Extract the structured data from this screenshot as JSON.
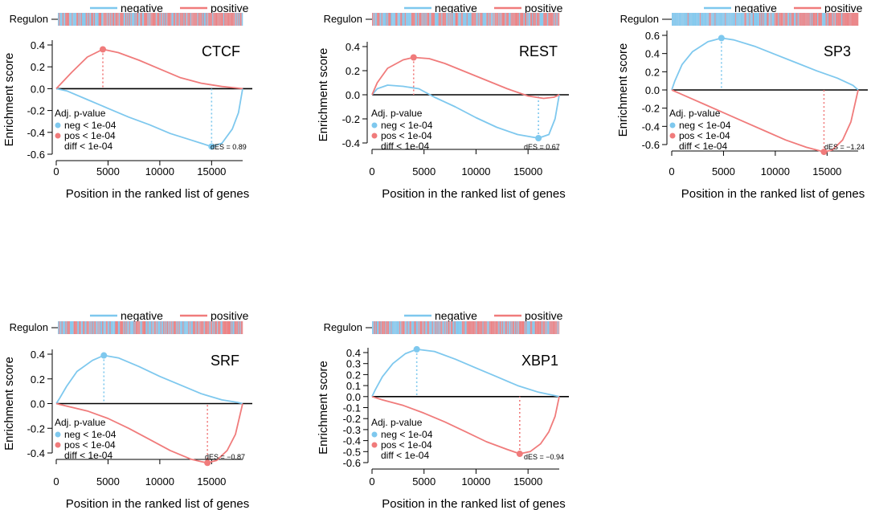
{
  "legend": {
    "negative": "negative",
    "positive": "positive"
  },
  "labels": {
    "regulon": "Regulon",
    "ylabel": "Enrichment score",
    "xlabel": "Position in the ranked list of genes",
    "pvalue_title": "Adj. p-value"
  },
  "colors": {
    "negative": "#7EC8EE",
    "positive": "#F07B7B",
    "axis": "#000000"
  },
  "chart_data": [
    {
      "type": "line",
      "title": "CTCF",
      "xlim": [
        0,
        18000
      ],
      "ylim": [
        -0.6,
        0.4
      ],
      "xticks": [
        0,
        5000,
        10000,
        15000
      ],
      "xtick_labels": [
        "0",
        "5000",
        "10000",
        "15000"
      ],
      "yticks": [
        -0.6,
        -0.4,
        -0.2,
        0.0,
        0.2,
        0.4
      ],
      "ytick_labels": [
        "-0.6",
        "-0.4",
        "-0.2",
        "0.0",
        "0.2",
        "0.4"
      ],
      "regulon_mix": 0.6,
      "pvalues": {
        "neg": "neg < 1e-04",
        "pos": "pos < 1e-04",
        "diff": "diff < 1e-04"
      },
      "des_label": "dES = 0.89",
      "series": [
        {
          "name": "negative",
          "peak_x": 15000,
          "peak_y": -0.53,
          "x": [
            0,
            1000,
            3000,
            5000,
            7000,
            9000,
            11000,
            13000,
            14000,
            15000,
            16000,
            17000,
            17600,
            18000
          ],
          "y": [
            0,
            -0.02,
            -0.1,
            -0.18,
            -0.26,
            -0.33,
            -0.41,
            -0.47,
            -0.5,
            -0.53,
            -0.5,
            -0.37,
            -0.22,
            0
          ]
        },
        {
          "name": "positive",
          "peak_x": 4500,
          "peak_y": 0.36,
          "x": [
            0,
            500,
            1500,
            3000,
            4500,
            6000,
            8000,
            10000,
            12000,
            14000,
            16000,
            17000,
            18000
          ],
          "y": [
            0,
            0.05,
            0.15,
            0.29,
            0.36,
            0.33,
            0.26,
            0.18,
            0.1,
            0.05,
            0.02,
            0.01,
            0
          ]
        }
      ]
    },
    {
      "type": "line",
      "title": "REST",
      "xlim": [
        0,
        18000
      ],
      "ylim": [
        -0.4,
        0.4
      ],
      "xticks": [
        0,
        5000,
        10000,
        15000
      ],
      "xtick_labels": [
        "0",
        "5000",
        "10000",
        "15000"
      ],
      "yticks": [
        -0.4,
        -0.2,
        0.0,
        0.2,
        0.4
      ],
      "ytick_labels": [
        "-0.4",
        "-0.2",
        "0.0",
        "0.2",
        "0.4"
      ],
      "regulon_mix": 0.6,
      "pvalues": {
        "neg": "neg < 1e-04",
        "pos": "pos < 1e-04",
        "diff": "diff < 1e-04"
      },
      "des_label": "dES = 0.67",
      "series": [
        {
          "name": "negative",
          "peak_x": 16000,
          "peak_y": -0.36,
          "x": [
            0,
            500,
            1500,
            3000,
            4500,
            6000,
            8000,
            10000,
            12000,
            14000,
            16000,
            17000,
            17600,
            18000
          ],
          "y": [
            0,
            0.05,
            0.08,
            0.07,
            0.05,
            -0.02,
            -0.1,
            -0.19,
            -0.27,
            -0.33,
            -0.36,
            -0.33,
            -0.2,
            0
          ]
        },
        {
          "name": "positive",
          "peak_x": 4000,
          "peak_y": 0.31,
          "x": [
            0,
            500,
            1500,
            3000,
            4000,
            5500,
            7000,
            9000,
            11000,
            13000,
            15000,
            16500,
            17500,
            18000
          ],
          "y": [
            0,
            0.1,
            0.22,
            0.29,
            0.31,
            0.3,
            0.26,
            0.19,
            0.12,
            0.05,
            -0.01,
            -0.03,
            -0.02,
            0
          ]
        }
      ]
    },
    {
      "type": "line",
      "title": "SP3",
      "xlim": [
        0,
        18000
      ],
      "ylim": [
        -0.6,
        0.6
      ],
      "xticks": [
        0,
        5000,
        10000,
        15000
      ],
      "xtick_labels": [
        "0",
        "5000",
        "10000",
        "15000"
      ],
      "yticks": [
        -0.6,
        -0.4,
        -0.2,
        0.0,
        0.2,
        0.4,
        0.6
      ],
      "ytick_labels": [
        "-0.6",
        "-0.4",
        "-0.2",
        "0.0",
        "0.2",
        "0.4",
        "0.6"
      ],
      "regulon_mix": 0.1,
      "pvalues": {
        "neg": "neg < 1e-04",
        "pos": "pos < 1e-04",
        "diff": "diff < 1e-04"
      },
      "des_label": "dES = −1.24",
      "series": [
        {
          "name": "negative",
          "peak_x": 4800,
          "peak_y": 0.57,
          "x": [
            0,
            300,
            1000,
            2000,
            3500,
            4800,
            6000,
            8000,
            10000,
            12000,
            14000,
            16000,
            17500,
            18000
          ],
          "y": [
            0,
            0.1,
            0.28,
            0.42,
            0.53,
            0.57,
            0.55,
            0.48,
            0.39,
            0.3,
            0.21,
            0.13,
            0.05,
            0
          ]
        },
        {
          "name": "positive",
          "peak_x": 14700,
          "peak_y": -0.68,
          "x": [
            0,
            1000,
            3000,
            5000,
            7000,
            9000,
            11000,
            13000,
            14000,
            14700,
            15500,
            16500,
            17300,
            18000
          ],
          "y": [
            0,
            -0.05,
            -0.15,
            -0.25,
            -0.35,
            -0.45,
            -0.55,
            -0.63,
            -0.66,
            -0.68,
            -0.66,
            -0.55,
            -0.35,
            0
          ]
        }
      ]
    },
    {
      "type": "line",
      "title": "SRF",
      "xlim": [
        0,
        18000
      ],
      "ylim": [
        -0.4,
        0.4
      ],
      "xticks": [
        0,
        5000,
        10000,
        15000
      ],
      "xtick_labels": [
        "0",
        "5000",
        "10000",
        "15000"
      ],
      "yticks": [
        -0.4,
        -0.2,
        0.0,
        0.2,
        0.4
      ],
      "ytick_labels": [
        "-0.4",
        "-0.2",
        "0.0",
        "0.2",
        "0.4"
      ],
      "regulon_mix": 0.45,
      "pvalues": {
        "neg": "neg < 1e-04",
        "pos": "pos < 1e-04",
        "diff": "diff < 1e-04"
      },
      "des_label": "dES = −0.87",
      "series": [
        {
          "name": "negative",
          "peak_x": 4600,
          "peak_y": 0.39,
          "x": [
            0,
            300,
            1000,
            2000,
            3500,
            4600,
            6000,
            8000,
            10000,
            12000,
            14000,
            16000,
            17500,
            18000
          ],
          "y": [
            0,
            0.04,
            0.14,
            0.26,
            0.35,
            0.39,
            0.37,
            0.3,
            0.22,
            0.15,
            0.08,
            0.03,
            0.01,
            0
          ]
        },
        {
          "name": "positive",
          "peak_x": 14600,
          "peak_y": -0.48,
          "x": [
            0,
            1000,
            3000,
            5000,
            7000,
            9000,
            11000,
            13000,
            14000,
            14600,
            15500,
            16500,
            17300,
            18000
          ],
          "y": [
            0,
            -0.02,
            -0.06,
            -0.12,
            -0.2,
            -0.29,
            -0.38,
            -0.45,
            -0.47,
            -0.48,
            -0.46,
            -0.38,
            -0.25,
            0
          ]
        }
      ]
    },
    {
      "type": "line",
      "title": "XBP1",
      "xlim": [
        0,
        18000
      ],
      "ylim": [
        -0.6,
        0.4
      ],
      "xticks": [
        0,
        5000,
        10000,
        15000
      ],
      "xtick_labels": [
        "0",
        "5000",
        "10000",
        "15000"
      ],
      "yticks": [
        -0.6,
        -0.5,
        -0.4,
        -0.3,
        -0.2,
        -0.1,
        0.0,
        0.1,
        0.2,
        0.3,
        0.4
      ],
      "ytick_labels": [
        "-0.6",
        "-0.5",
        "-0.4",
        "-0.3",
        "-0.2",
        "-0.1",
        "0.0",
        "0.1",
        "0.2",
        "0.3",
        "0.4"
      ],
      "regulon_mix": 0.4,
      "pvalues": {
        "neg": "neg < 1e-04",
        "pos": "pos < 1e-04",
        "diff": "diff < 1e-04"
      },
      "des_label": "dES = −0.94",
      "series": [
        {
          "name": "negative",
          "peak_x": 4300,
          "peak_y": 0.43,
          "x": [
            0,
            300,
            1000,
            2000,
            3200,
            4300,
            6000,
            8000,
            10000,
            12000,
            14000,
            16000,
            17500,
            18000
          ],
          "y": [
            0,
            0.06,
            0.18,
            0.3,
            0.39,
            0.43,
            0.41,
            0.34,
            0.26,
            0.18,
            0.1,
            0.04,
            0.01,
            0
          ]
        },
        {
          "name": "positive",
          "peak_x": 14200,
          "peak_y": -0.52,
          "x": [
            0,
            1000,
            3000,
            5000,
            7000,
            9000,
            11000,
            13000,
            14200,
            15200,
            16200,
            17000,
            17600,
            18000
          ],
          "y": [
            0,
            -0.03,
            -0.08,
            -0.15,
            -0.23,
            -0.32,
            -0.41,
            -0.48,
            -0.52,
            -0.5,
            -0.43,
            -0.32,
            -0.18,
            0
          ]
        }
      ]
    }
  ]
}
